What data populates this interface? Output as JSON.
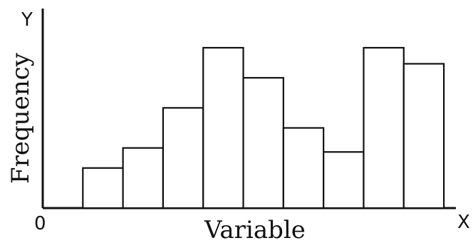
{
  "chart_data": {
    "type": "bar",
    "title": "",
    "xlabel": "Variable",
    "ylabel": "Frequency",
    "axis_markers": {
      "origin": "0",
      "x_end": "X",
      "y_end": "Y"
    },
    "bins": [
      {
        "from": 1,
        "to": 2,
        "value": 2
      },
      {
        "from": 2,
        "to": 3,
        "value": 3
      },
      {
        "from": 3,
        "to": 4,
        "value": 5
      },
      {
        "from": 4,
        "to": 5,
        "value": 8
      },
      {
        "from": 5,
        "to": 6,
        "value": 6.5
      },
      {
        "from": 6,
        "to": 7,
        "value": 4
      },
      {
        "from": 7,
        "to": 8,
        "value": 2.8
      },
      {
        "from": 8,
        "to": 9,
        "value": 8
      },
      {
        "from": 9,
        "to": 10,
        "value": 7.2
      }
    ],
    "xlim": [
      0,
      10.3
    ],
    "ylim": [
      0,
      8
    ],
    "grid": false,
    "legend": false
  }
}
